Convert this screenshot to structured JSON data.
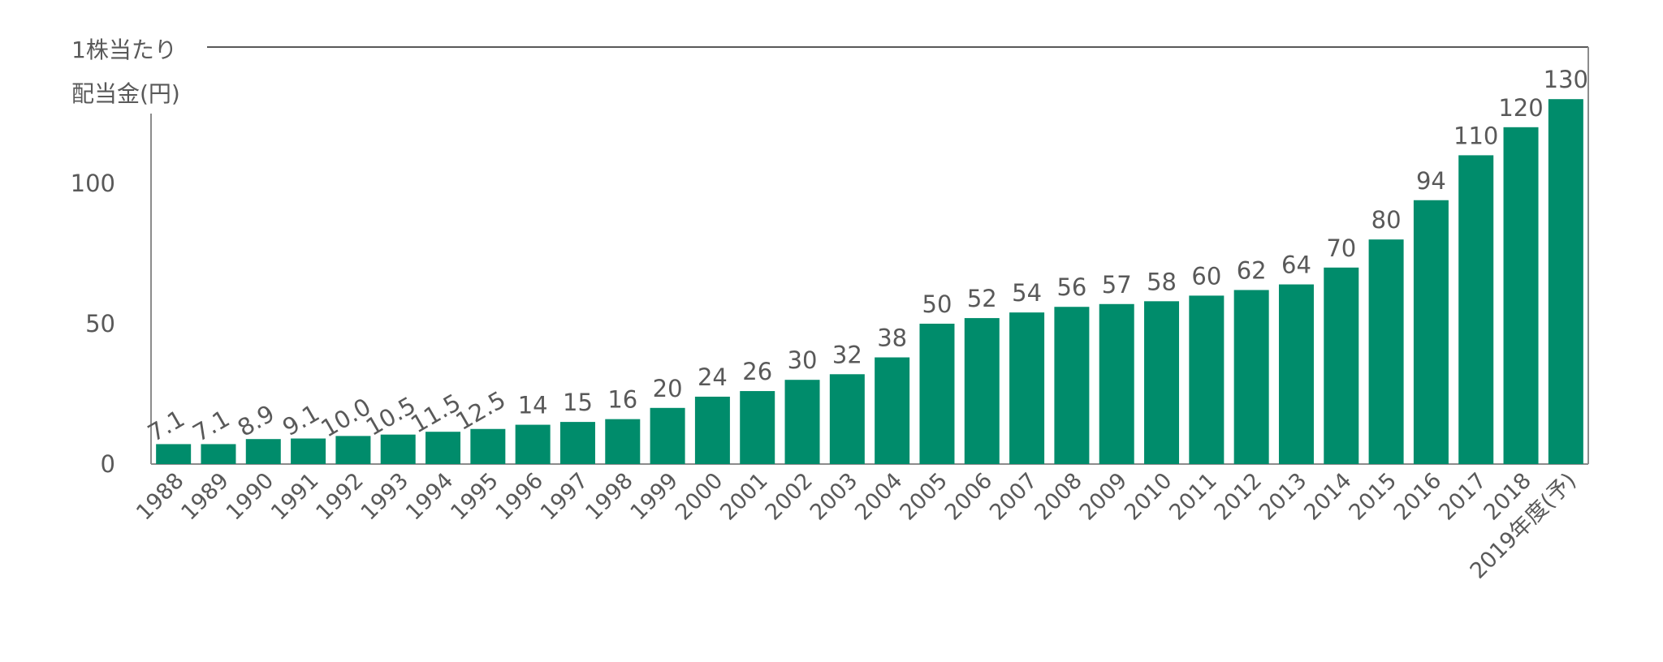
{
  "chart_data": {
    "type": "bar",
    "ylabel_line1": "1株当たり",
    "ylabel_line2": "配当金(円)",
    "yticks": [
      "0",
      "50",
      "100"
    ],
    "ylim": [
      0,
      150
    ],
    "bar_color": "#008c6b",
    "categories": [
      "1988",
      "1989",
      "1990",
      "1991",
      "1992",
      "1993",
      "1994",
      "1995",
      "1996",
      "1997",
      "1998",
      "1999",
      "2000",
      "2001",
      "2002",
      "2003",
      "2004",
      "2005",
      "2006",
      "2007",
      "2008",
      "2009",
      "2010",
      "2011",
      "2012",
      "2013",
      "2014",
      "2015",
      "2016",
      "2017",
      "2018",
      "2019年度(予)"
    ],
    "values": [
      7.1,
      7.1,
      8.9,
      9.1,
      10.0,
      10.5,
      11.5,
      12.5,
      14,
      15,
      16,
      20,
      24,
      26,
      30,
      32,
      38,
      50,
      52,
      54,
      56,
      57,
      58,
      60,
      62,
      64,
      70,
      80,
      94,
      110,
      120,
      130
    ],
    "value_labels": [
      "7.1",
      "7.1",
      "8.9",
      "9.1",
      "10.0",
      "10.5",
      "11.5",
      "12.5",
      "14",
      "15",
      "16",
      "20",
      "24",
      "26",
      "30",
      "32",
      "38",
      "50",
      "52",
      "54",
      "56",
      "57",
      "58",
      "60",
      "62",
      "64",
      "70",
      "80",
      "94",
      "110",
      "120",
      "130"
    ]
  }
}
